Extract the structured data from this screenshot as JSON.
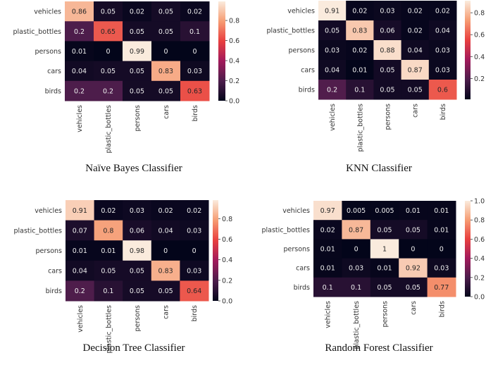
{
  "chart_data": [
    {
      "type": "heatmap",
      "title": "Naïve Bayes Classifier",
      "row_labels": [
        "vehicles",
        "plastic_bottles",
        "persons",
        "cars",
        "birds"
      ],
      "col_labels": [
        "vehicles",
        "plastic_bottles",
        "persons",
        "cars",
        "birds"
      ],
      "values": [
        [
          0.86,
          0.05,
          0.02,
          0.05,
          0.02
        ],
        [
          0.2,
          0.65,
          0.05,
          0.05,
          0.1
        ],
        [
          0.01,
          0,
          0.99,
          0,
          0
        ],
        [
          0.04,
          0.05,
          0.05,
          0.83,
          0.03
        ],
        [
          0.2,
          0.2,
          0.05,
          0.05,
          0.63
        ]
      ],
      "value_labels": [
        [
          "0.86",
          "0.05",
          "0.02",
          "0.05",
          "0.02"
        ],
        [
          "0.2",
          "0.65",
          "0.05",
          "0.05",
          "0.1"
        ],
        [
          "0.01",
          "0",
          "0.99",
          "0",
          "0"
        ],
        [
          "0.04",
          "0.05",
          "0.05",
          "0.83",
          "0.03"
        ],
        [
          "0.2",
          "0.2",
          "0.05",
          "0.05",
          "0.63"
        ]
      ],
      "vrange": [
        0,
        0.99
      ],
      "colorbar_ticks": [
        "0.0",
        "0.2",
        "0.4",
        "0.6",
        "0.8"
      ]
    },
    {
      "type": "heatmap",
      "title": "KNN Classifier",
      "row_labels": [
        "vehicles",
        "plastic_bottles",
        "persons",
        "cars",
        "birds"
      ],
      "col_labels": [
        "vehicles",
        "plastic_bottles",
        "persons",
        "cars",
        "birds"
      ],
      "values": [
        [
          0.91,
          0.02,
          0.03,
          0.02,
          0.02
        ],
        [
          0.05,
          0.83,
          0.06,
          0.02,
          0.04
        ],
        [
          0.03,
          0.02,
          0.88,
          0.04,
          0.03
        ],
        [
          0.04,
          0.01,
          0.05,
          0.87,
          0.03
        ],
        [
          0.2,
          0.1,
          0.05,
          0.05,
          0.6
        ]
      ],
      "value_labels": [
        [
          "0.91",
          "0.02",
          "0.03",
          "0.02",
          "0.02"
        ],
        [
          "0.05",
          "0.83",
          "0.06",
          "0.02",
          "0.04"
        ],
        [
          "0.03",
          "0.02",
          "0.88",
          "0.04",
          "0.03"
        ],
        [
          "0.04",
          "0.01",
          "0.05",
          "0.87",
          "0.03"
        ],
        [
          "0.2",
          "0.1",
          "0.05",
          "0.05",
          "0.6"
        ]
      ],
      "vrange": [
        0.01,
        0.91
      ],
      "colorbar_ticks": [
        "0.2",
        "0.4",
        "0.6",
        "0.8"
      ]
    },
    {
      "type": "heatmap",
      "title": "Decision Tree Classifier",
      "row_labels": [
        "vehicles",
        "plastic_bottles",
        "persons",
        "cars",
        "birds"
      ],
      "col_labels": [
        "vehicles",
        "plastic_bottles",
        "persons",
        "cars",
        "birds"
      ],
      "values": [
        [
          0.91,
          0.02,
          0.03,
          0.02,
          0.02
        ],
        [
          0.07,
          0.8,
          0.06,
          0.04,
          0.03
        ],
        [
          0.01,
          0.01,
          0.98,
          0,
          0
        ],
        [
          0.04,
          0.05,
          0.05,
          0.83,
          0.03
        ],
        [
          0.2,
          0.1,
          0.05,
          0.05,
          0.64
        ]
      ],
      "value_labels": [
        [
          "0.91",
          "0.02",
          "0.03",
          "0.02",
          "0.02"
        ],
        [
          "0.07",
          "0.8",
          "0.06",
          "0.04",
          "0.03"
        ],
        [
          "0.01",
          "0.01",
          "0.98",
          "0",
          "0"
        ],
        [
          "0.04",
          "0.05",
          "0.05",
          "0.83",
          "0.03"
        ],
        [
          "0.2",
          "0.1",
          "0.05",
          "0.05",
          "0.64"
        ]
      ],
      "vrange": [
        0,
        0.98
      ],
      "colorbar_ticks": [
        "0.0",
        "0.2",
        "0.4",
        "0.6",
        "0.8"
      ]
    },
    {
      "type": "heatmap",
      "title": "Random Forest Classifier",
      "row_labels": [
        "vehicles",
        "plastic_bottles",
        "persons",
        "cars",
        "birds"
      ],
      "col_labels": [
        "vehicles",
        "plastic_bottles",
        "persons",
        "cars",
        "birds"
      ],
      "values": [
        [
          0.97,
          0.005,
          0.005,
          0.01,
          0.01
        ],
        [
          0.02,
          0.87,
          0.05,
          0.05,
          0.01
        ],
        [
          0.01,
          0,
          1,
          0,
          0
        ],
        [
          0.01,
          0.03,
          0.01,
          0.92,
          0.03
        ],
        [
          0.1,
          0.1,
          0.05,
          0.05,
          0.77
        ]
      ],
      "value_labels": [
        [
          "0.97",
          "0.005",
          "0.005",
          "0.01",
          "0.01"
        ],
        [
          "0.02",
          "0.87",
          "0.05",
          "0.05",
          "0.01"
        ],
        [
          "0.01",
          "0",
          "1",
          "0",
          "0"
        ],
        [
          "0.01",
          "0.03",
          "0.01",
          "0.92",
          "0.03"
        ],
        [
          "0.1",
          "0.1",
          "0.05",
          "0.05",
          "0.77"
        ]
      ],
      "vrange": [
        0,
        1.0
      ],
      "colorbar_ticks": [
        "0.0",
        "0.2",
        "0.4",
        "0.6",
        "0.8",
        "1.0"
      ]
    }
  ]
}
